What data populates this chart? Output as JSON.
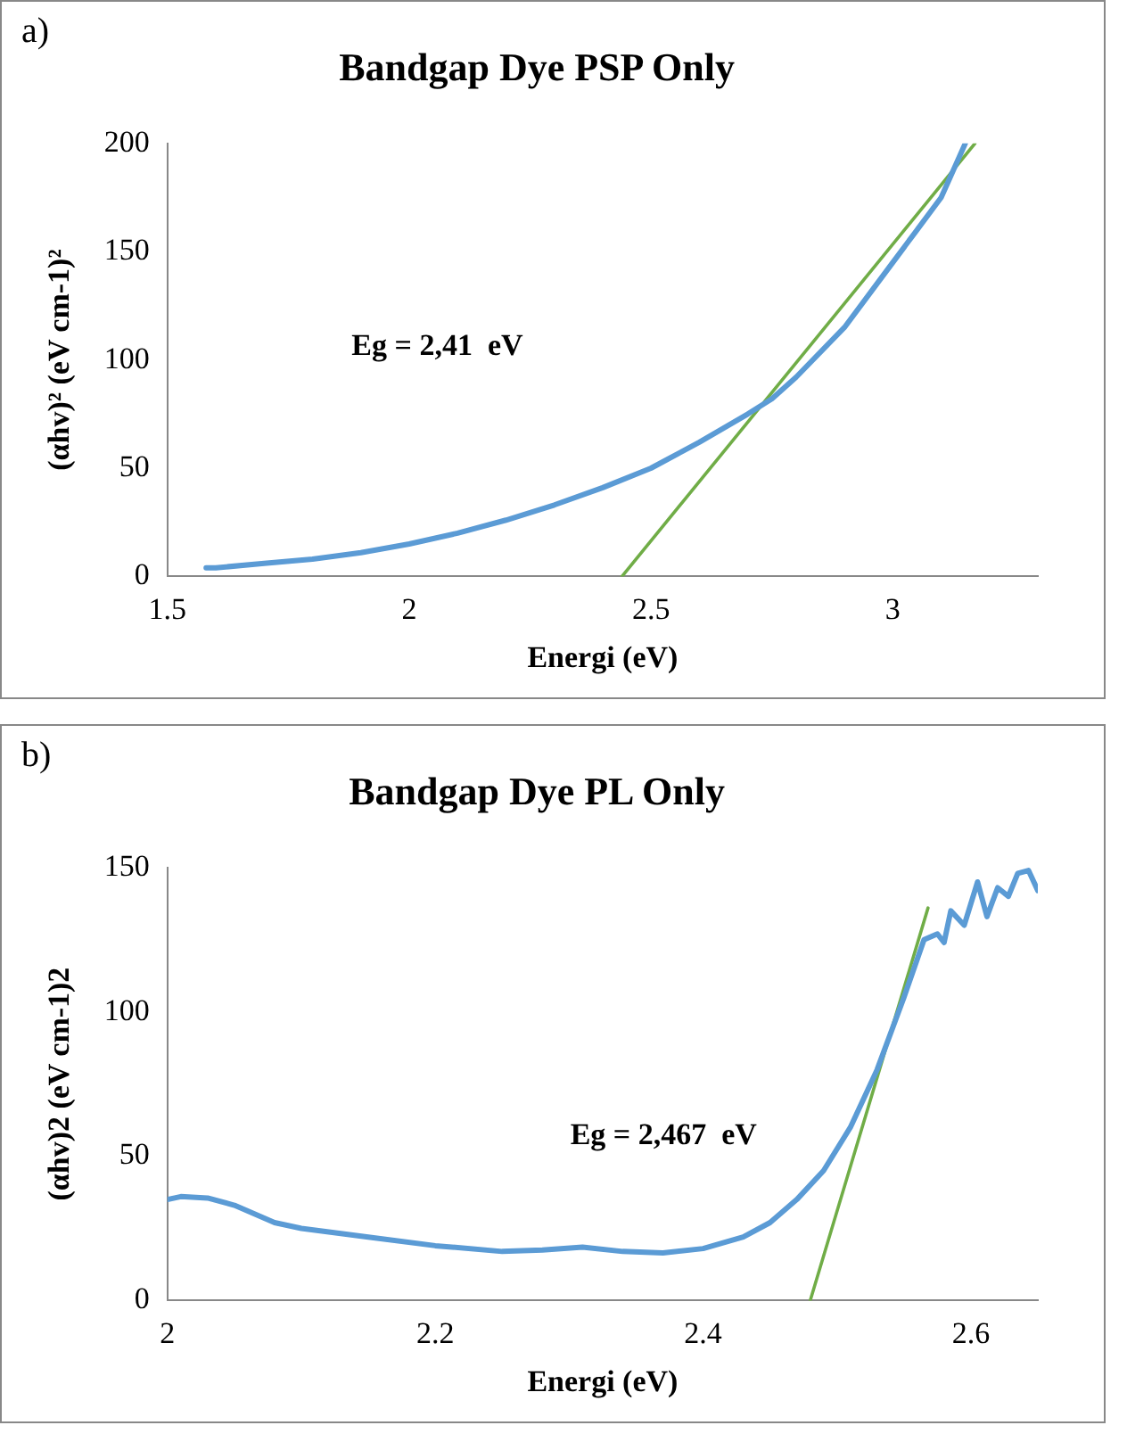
{
  "chart_data": [
    {
      "type": "line",
      "title": "Bandgap Dye PSP Only",
      "xlabel": "Energi (eV)",
      "ylabel": "(αhv)² (eV cm-1)²",
      "annotations": [
        "a)",
        "Eg = 2,41  eV"
      ],
      "xlim": [
        1.5,
        3.3
      ],
      "xticks": [
        1.5,
        2,
        2.5,
        3
      ],
      "ylim": [
        0,
        200
      ],
      "yticks": [
        0,
        50,
        100,
        150,
        200
      ],
      "grid": false,
      "legend": false,
      "marker": "none",
      "line_style": "solid",
      "series": [
        {
          "color": "#5b9bd5",
          "x": [
            1.58,
            1.6,
            1.7,
            1.8,
            1.9,
            2.0,
            2.1,
            2.2,
            2.3,
            2.4,
            2.5,
            2.6,
            2.7,
            2.75,
            2.8,
            2.9,
            3.0,
            3.05,
            3.1,
            3.12,
            3.15
          ],
          "values": [
            4,
            4,
            6,
            8,
            11,
            15,
            20,
            26,
            33,
            41,
            50,
            62,
            75,
            82,
            92,
            115,
            145,
            160,
            175,
            185,
            200
          ]
        },
        {
          "type": "line",
          "color": "#70ad47",
          "x": [
            2.44,
            3.17
          ],
          "values": [
            0,
            200
          ]
        }
      ]
    },
    {
      "type": "line",
      "title": "Bandgap Dye PL Only",
      "xlabel": "Energi (eV)",
      "ylabel": "(αhv)2 (eV cm-1)2",
      "annotations": [
        "b)",
        "Eg = 2,467  eV"
      ],
      "xlim": [
        2,
        2.65
      ],
      "xticks": [
        2,
        2.2,
        2.4,
        2.6
      ],
      "ylim": [
        0,
        150
      ],
      "yticks": [
        0,
        50,
        100,
        150
      ],
      "grid": false,
      "legend": false,
      "marker": "none",
      "line_style": "solid",
      "series": [
        {
          "color": "#5b9bd5",
          "x": [
            2.0,
            2.01,
            2.03,
            2.05,
            2.08,
            2.1,
            2.15,
            2.2,
            2.25,
            2.28,
            2.31,
            2.34,
            2.37,
            2.4,
            2.43,
            2.45,
            2.47,
            2.49,
            2.51,
            2.53,
            2.55,
            2.565,
            2.575,
            2.58,
            2.585,
            2.595,
            2.605,
            2.612,
            2.62,
            2.628,
            2.635,
            2.643,
            2.65
          ],
          "values": [
            35,
            36,
            35.5,
            33,
            27,
            25,
            22,
            19,
            17,
            17.5,
            18.5,
            17,
            16.5,
            18,
            22,
            27,
            35,
            45,
            60,
            80,
            105,
            125,
            127,
            124,
            135,
            130,
            145,
            133,
            143,
            140,
            148,
            149,
            142
          ]
        },
        {
          "type": "line",
          "color": "#70ad47",
          "x": [
            2.48,
            2.568
          ],
          "values": [
            0,
            136
          ]
        }
      ]
    }
  ]
}
